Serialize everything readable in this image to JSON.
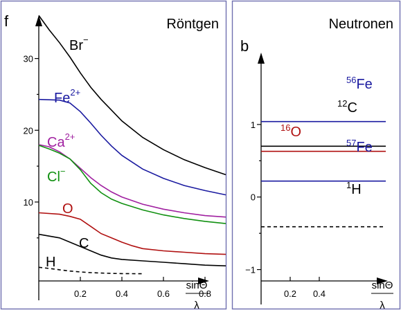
{
  "colors": {
    "frame": "#6f6fb0",
    "black": "#000000",
    "blue": "#1a1aa0",
    "purple": "#a020a0",
    "green": "#109010",
    "red": "#b01010"
  },
  "chart_data": [
    {
      "type": "line",
      "panel_letter": "f",
      "title": "Röntgen",
      "xlabel_num": "sinΘ",
      "xlabel_den": "λ",
      "ylabel": "",
      "xlim": [
        0,
        0.9
      ],
      "ylim": [
        -1,
        37
      ],
      "x_ticks": [
        0.2,
        0.4,
        0.6,
        0.8
      ],
      "x_tick_labels": [
        "0.2",
        "0.4",
        "0.6",
        "0.8"
      ],
      "y_ticks": [
        10,
        20,
        30
      ],
      "y_tick_labels": [
        "10",
        "20",
        "30"
      ],
      "y_minor_ticks": [
        5,
        15,
        25
      ],
      "grid": false,
      "legend": "none",
      "series": [
        {
          "name": "Br",
          "sup": "−",
          "color": "black",
          "dashed": false,
          "x": [
            0,
            0.05,
            0.1,
            0.15,
            0.2,
            0.25,
            0.3,
            0.35,
            0.4,
            0.5,
            0.6,
            0.7,
            0.8,
            0.9
          ],
          "y": [
            36,
            34,
            32.2,
            30.2,
            28,
            26,
            24.3,
            22.8,
            21.3,
            19,
            17.3,
            15.9,
            14.8,
            13.8
          ]
        },
        {
          "name": "Fe",
          "sup": "2+",
          "color": "blue",
          "dashed": false,
          "x": [
            0,
            0.1,
            0.15,
            0.2,
            0.25,
            0.3,
            0.35,
            0.4,
            0.5,
            0.6,
            0.7,
            0.8,
            0.9
          ],
          "y": [
            24.3,
            24.2,
            23.8,
            22.6,
            21,
            19.3,
            17.8,
            16.5,
            14.6,
            13.3,
            12.3,
            11.6,
            11
          ]
        },
        {
          "name": "Ca",
          "sup": "2+",
          "color": "purple",
          "dashed": false,
          "x": [
            0,
            0.05,
            0.1,
            0.15,
            0.2,
            0.25,
            0.3,
            0.35,
            0.4,
            0.5,
            0.6,
            0.7,
            0.8,
            0.9
          ],
          "y": [
            18,
            17.7,
            17,
            16,
            14.7,
            13.4,
            12.3,
            11.4,
            10.7,
            9.7,
            9,
            8.5,
            8.1,
            7.9
          ]
        },
        {
          "name": "Cl",
          "sup": "−",
          "color": "green",
          "dashed": false,
          "x": [
            0,
            0.05,
            0.1,
            0.15,
            0.2,
            0.25,
            0.3,
            0.35,
            0.4,
            0.5,
            0.6,
            0.7,
            0.8,
            0.9
          ],
          "y": [
            17.9,
            17.4,
            16.8,
            16,
            14.5,
            12.6,
            11.3,
            10.4,
            9.8,
            8.9,
            8.2,
            7.7,
            7.3,
            7
          ]
        },
        {
          "name": "O",
          "sup": "",
          "color": "red",
          "dashed": false,
          "x": [
            0,
            0.1,
            0.15,
            0.2,
            0.25,
            0.3,
            0.35,
            0.4,
            0.45,
            0.5,
            0.6,
            0.7,
            0.8,
            0.9
          ],
          "y": [
            8.5,
            8.3,
            8,
            7.6,
            6.6,
            5.6,
            5,
            4.4,
            3.9,
            3.5,
            3.2,
            3,
            2.8,
            2.7
          ]
        },
        {
          "name": "C",
          "sup": "",
          "color": "black",
          "dashed": false,
          "x": [
            0,
            0.1,
            0.15,
            0.2,
            0.25,
            0.3,
            0.35,
            0.4,
            0.5,
            0.6,
            0.7,
            0.8,
            0.9
          ],
          "y": [
            5.5,
            5,
            4.4,
            3.8,
            3.2,
            2.6,
            2.2,
            2,
            1.8,
            1.6,
            1.4,
            1.2,
            1.1
          ]
        },
        {
          "name": "H",
          "sup": "",
          "color": "black",
          "dashed": true,
          "x": [
            0,
            0.05,
            0.1,
            0.15,
            0.2,
            0.25,
            0.3,
            0.35,
            0.4,
            0.45,
            0.5
          ],
          "y": [
            0.9,
            0.75,
            0.55,
            0.38,
            0.25,
            0.16,
            0.1,
            0.05,
            0.02,
            0.01,
            0
          ]
        }
      ]
    },
    {
      "type": "line",
      "panel_letter": "b",
      "title": "Neutronen",
      "xlabel_num": "sinΘ",
      "xlabel_den": "λ",
      "ylabel": "",
      "xlim": [
        0,
        0.9
      ],
      "ylim": [
        -1.5,
        1.6
      ],
      "x_ticks": [
        0.2,
        0.4
      ],
      "x_tick_labels": [
        "0.2",
        "0.4"
      ],
      "y_ticks": [
        -1,
        0,
        1
      ],
      "y_tick_labels": [
        "−1",
        "0",
        "1"
      ],
      "y_minor_ticks": [
        -0.5,
        0.5
      ],
      "grid": false,
      "legend": "none",
      "series": [
        {
          "iso": "56",
          "name": "Fe",
          "color": "blue",
          "dashed": false,
          "value": 1.04
        },
        {
          "iso": "12",
          "name": "C",
          "color": "black",
          "dashed": false,
          "value": 0.7
        },
        {
          "iso": "16",
          "name": "O",
          "color": "red",
          "dashed": false,
          "value": 0.63
        },
        {
          "iso": "57",
          "name": "Fe",
          "color": "blue",
          "dashed": false,
          "value": 0.22
        },
        {
          "iso": "1",
          "name": "H",
          "color": "black",
          "dashed": true,
          "value": -0.41
        }
      ]
    }
  ]
}
